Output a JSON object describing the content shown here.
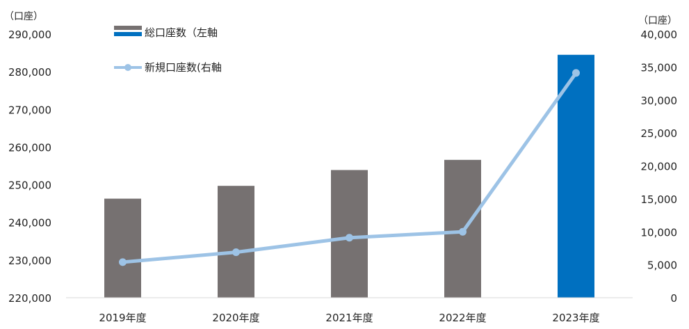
{
  "chart_data": {
    "type": "bar+line",
    "categories": [
      "2019年度",
      "2020年度",
      "2021年度",
      "2022年度",
      "2023年度"
    ],
    "series": [
      {
        "name": "総口座数（左軸",
        "type": "bar",
        "axis": "left",
        "values": [
          246300,
          249700,
          253900,
          256600,
          284500
        ],
        "colors": [
          "#767171",
          "#767171",
          "#767171",
          "#767171",
          "#0070C0"
        ]
      },
      {
        "name": "新規口座数(右軸",
        "type": "line",
        "axis": "right",
        "values": [
          5400,
          6900,
          9100,
          10000,
          34100
        ],
        "color": "#9DC3E6"
      }
    ],
    "y_left": {
      "unit": "（口座）",
      "range": [
        220000,
        290000
      ],
      "ticks": [
        "220,000",
        "230,000",
        "240,000",
        "250,000",
        "260,000",
        "270,000",
        "280,000",
        "290,000"
      ]
    },
    "y_right": {
      "unit": "（口座）",
      "range": [
        0,
        40000
      ],
      "ticks": [
        "0",
        "5,000",
        "10,000",
        "15,000",
        "20,000",
        "25,000",
        "30,000",
        "35,000",
        "40,000"
      ]
    },
    "legend_position": "top-left",
    "grid": false
  }
}
